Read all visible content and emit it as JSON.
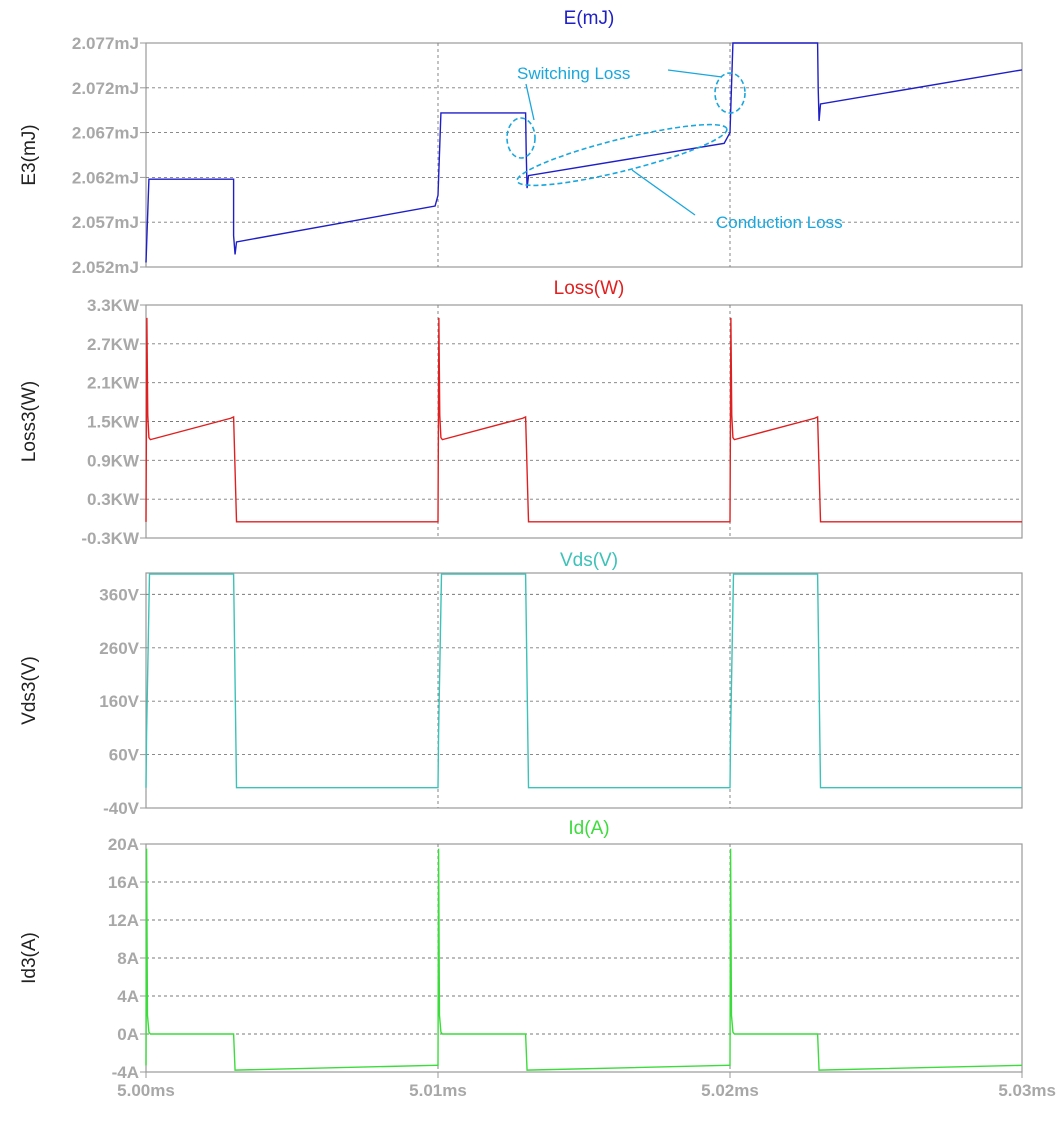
{
  "chart_data": [
    {
      "type": "line",
      "title": "E(mJ)",
      "ylabel": "E3(mJ)",
      "color": "#1f1fc8",
      "ylim": [
        2.052,
        2.077
      ],
      "yticks": [
        {
          "value": 2.077,
          "label": "2.077mJ"
        },
        {
          "value": 2.072,
          "label": "2.072mJ"
        },
        {
          "value": 2.067,
          "label": "2.067mJ"
        },
        {
          "value": 2.062,
          "label": "2.062mJ"
        },
        {
          "value": 2.057,
          "label": "2.057mJ"
        },
        {
          "value": 2.052,
          "label": "2.052mJ"
        }
      ],
      "series": [
        {
          "x": [
            5.0,
            5.00008,
            5.0001,
            5.003,
            5.003,
            5.00305,
            5.0031,
            5.0099,
            5.01,
            5.0101,
            5.013,
            5.01302,
            5.01305,
            5.0131,
            5.0198,
            5.02,
            5.0201,
            5.023,
            5.02302,
            5.02305,
            5.0231,
            5.03
          ],
          "y": [
            2.0525,
            2.06,
            2.0618,
            2.0618,
            2.0555,
            2.0534,
            2.0548,
            2.0588,
            2.06,
            2.0692,
            2.0692,
            2.065,
            2.0608,
            2.0622,
            2.0658,
            2.067,
            2.077,
            2.077,
            2.072,
            2.0683,
            2.0702,
            2.074
          ]
        }
      ],
      "annotations": [
        {
          "text": "Switching Loss"
        },
        {
          "text": "Conduction Loss"
        }
      ]
    },
    {
      "type": "line",
      "title": "Loss(W)",
      "ylabel": "Loss3(W)",
      "color": "#e02020",
      "ylim": [
        -0.3,
        3.3
      ],
      "yticks": [
        {
          "value": 3.3,
          "label": "3.3KW"
        },
        {
          "value": 2.7,
          "label": "2.7KW"
        },
        {
          "value": 2.1,
          "label": "2.1KW"
        },
        {
          "value": 1.5,
          "label": "1.5KW"
        },
        {
          "value": 0.9,
          "label": "0.9KW"
        },
        {
          "value": 0.3,
          "label": "0.3KW"
        },
        {
          "value": -0.3,
          "label": "-0.3KW"
        }
      ],
      "series": [
        {
          "x": [
            5.0,
            5.00003,
            5.00006,
            5.0001,
            5.00015,
            5.0029,
            5.003,
            5.0031,
            5.0099,
            5.01,
            5.01003,
            5.01006,
            5.0101,
            5.01015,
            5.0129,
            5.013,
            5.0131,
            5.0199,
            5.02,
            5.02003,
            5.02006,
            5.0201,
            5.02015,
            5.0229,
            5.023,
            5.0231,
            5.03
          ],
          "y": [
            -0.05,
            3.1,
            1.6,
            1.25,
            1.22,
            1.55,
            1.57,
            -0.05,
            -0.05,
            -0.05,
            3.1,
            1.6,
            1.25,
            1.22,
            1.55,
            1.57,
            -0.05,
            -0.05,
            -0.05,
            3.1,
            1.6,
            1.25,
            1.22,
            1.55,
            1.57,
            -0.05,
            -0.05
          ]
        }
      ]
    },
    {
      "type": "line",
      "title": "Vds(V)",
      "ylabel": "Vds3(V)",
      "color": "#3cc2b8",
      "ylim": [
        -40,
        400
      ],
      "yticks": [
        {
          "value": 360,
          "label": "360V"
        },
        {
          "value": 260,
          "label": "260V"
        },
        {
          "value": 160,
          "label": "160V"
        },
        {
          "value": 60,
          "label": "60V"
        },
        {
          "value": -40,
          "label": "-40V"
        }
      ],
      "series": [
        {
          "x": [
            5.0,
            5.00002,
            5.00012,
            5.003,
            5.0031,
            5.01,
            5.01002,
            5.01012,
            5.013,
            5.0131,
            5.02,
            5.02002,
            5.02012,
            5.023,
            5.0231,
            5.03
          ],
          "y": [
            -2,
            100,
            398,
            398,
            -2,
            -2,
            100,
            398,
            398,
            -2,
            -2,
            100,
            398,
            398,
            -2,
            -2
          ]
        }
      ]
    },
    {
      "type": "line",
      "title": "Id(A)",
      "ylabel": "Id3(A)",
      "color": "#3cdc3c",
      "ylim": [
        -4,
        20
      ],
      "yticks": [
        {
          "value": 20,
          "label": "20A"
        },
        {
          "value": 16,
          "label": "16A"
        },
        {
          "value": 12,
          "label": "12A"
        },
        {
          "value": 8,
          "label": "8A"
        },
        {
          "value": 4,
          "label": "4A"
        },
        {
          "value": 0,
          "label": "0A"
        },
        {
          "value": -4,
          "label": "-4A"
        }
      ],
      "series": [
        {
          "x": [
            5.0,
            5.00002,
            5.00005,
            5.0001,
            5.00015,
            5.003,
            5.00305,
            5.0099,
            5.01,
            5.01002,
            5.01005,
            5.0101,
            5.01015,
            5.013,
            5.01305,
            5.0199,
            5.02,
            5.02002,
            5.02005,
            5.0201,
            5.02015,
            5.023,
            5.02305,
            5.03
          ],
          "y": [
            -3.3,
            19.5,
            2.0,
            0.2,
            0.0,
            0.0,
            -3.8,
            -3.3,
            -3.3,
            19.5,
            2.0,
            0.2,
            0.0,
            0.0,
            -3.8,
            -3.3,
            -3.3,
            19.5,
            2.0,
            0.2,
            0.0,
            0.0,
            -3.8,
            -3.3
          ]
        }
      ]
    }
  ],
  "xaxis": {
    "xlim": [
      5.0,
      5.03
    ],
    "ticks": [
      {
        "value": 5.0,
        "label": "5.00ms"
      },
      {
        "value": 5.01,
        "label": "5.01ms"
      },
      {
        "value": 5.02,
        "label": "5.02ms"
      },
      {
        "value": 5.03,
        "label": "5.03ms"
      }
    ]
  },
  "colors": {
    "frame": "#9a9a9a",
    "grid": "#7a7a7a",
    "tick_text": "#a8a8a8",
    "annotation": "#1aa7dd"
  }
}
